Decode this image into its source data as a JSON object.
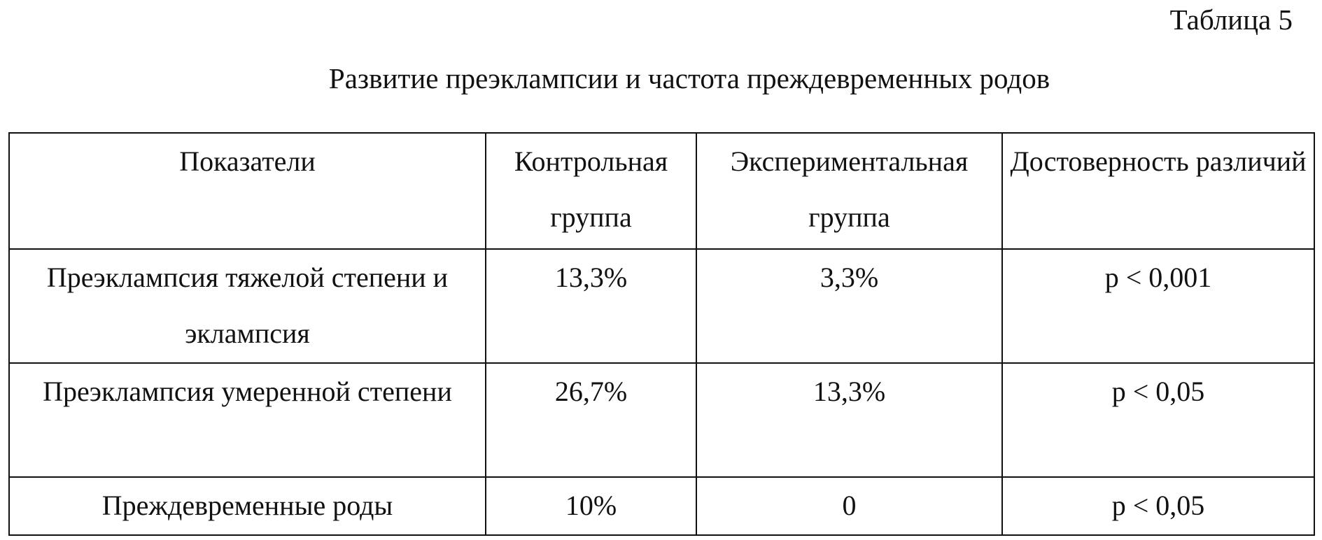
{
  "header": {
    "label": "Таблица 5",
    "title": "Развитие преэклампсии и частота преждевременных родов"
  },
  "table": {
    "columns": [
      "Показатели",
      "Контрольная группа",
      "Экспериментальная группа",
      "Достоверность различий"
    ],
    "rows": [
      [
        "Преэклампсия тяжелой степени и эклампсия",
        "13,3%",
        "3,3%",
        "p < 0,001"
      ],
      [
        "Преэклампсия умеренной степени",
        "26,7%",
        "13,3%",
        "p < 0,05"
      ],
      [
        "Преждевременные роды",
        "10%",
        "0",
        "p < 0,05"
      ]
    ]
  }
}
